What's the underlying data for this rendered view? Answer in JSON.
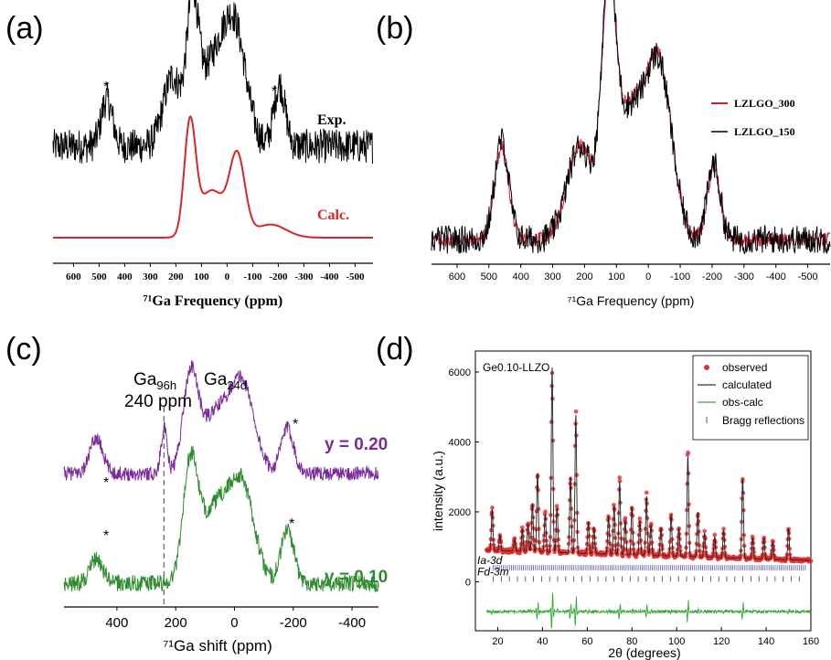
{
  "chart_data": [
    {
      "id": "a",
      "panel_label": "(a)",
      "type": "line",
      "xlabel": "⁷¹Ga Frequency (ppm)",
      "x_ticks": [
        600,
        500,
        400,
        300,
        200,
        100,
        0,
        -100,
        -200,
        -300,
        -400,
        -500
      ],
      "xlim": [
        680,
        -570
      ],
      "ylabel": "",
      "grid": false,
      "series": [
        {
          "name": "Exp.",
          "color": "#000000",
          "role": "noisy",
          "peaks": [
            [
              470,
              0.38,
              22
            ],
            [
              215,
              0.55,
              35
            ],
            [
              135,
              1.0,
              22
            ],
            [
              60,
              0.62,
              55
            ],
            [
              -30,
              0.88,
              45
            ],
            [
              -205,
              0.5,
              22
            ]
          ],
          "noise": 0.14
        },
        {
          "name": "Calc.",
          "color": "#d62728",
          "role": "smooth",
          "peaks": [
            [
              145,
              1.0,
              22
            ],
            [
              60,
              0.43,
              50
            ],
            [
              -40,
              0.72,
              30
            ],
            [
              -170,
              0.12,
              60
            ]
          ],
          "noise": 0
        }
      ],
      "annotations": [
        "*",
        "*"
      ]
    },
    {
      "id": "b",
      "panel_label": "(b)",
      "type": "line",
      "xlabel": "⁷¹Ga Frequency (ppm)",
      "x_ticks": [
        600,
        500,
        400,
        300,
        200,
        100,
        0,
        -100,
        -200,
        -300,
        -400,
        -500
      ],
      "xlim": [
        680,
        -570
      ],
      "ylabel": "",
      "grid": false,
      "legend": "top-right",
      "series": [
        {
          "name": "LZLGO_300",
          "color": "#c8203b",
          "peaks": [
            [
              460,
              0.45,
              22
            ],
            [
              215,
              0.45,
              40
            ],
            [
              125,
              1.0,
              22
            ],
            [
              60,
              0.62,
              50
            ],
            [
              -35,
              0.8,
              40
            ],
            [
              -205,
              0.35,
              20
            ]
          ],
          "noise": 0.035
        },
        {
          "name": "LZLGO_150",
          "color": "#000000",
          "peaks": [
            [
              460,
              0.48,
              22
            ],
            [
              215,
              0.45,
              40
            ],
            [
              125,
              1.04,
              22
            ],
            [
              60,
              0.6,
              50
            ],
            [
              -35,
              0.78,
              40
            ],
            [
              -205,
              0.37,
              20
            ]
          ],
          "noise": 0.07
        }
      ]
    },
    {
      "id": "c",
      "panel_label": "(c)",
      "type": "line",
      "xlabel": "⁷¹Ga shift (ppm)",
      "x_ticks": [
        400,
        200,
        0,
        -200,
        -400
      ],
      "xlim": [
        580,
        -490
      ],
      "ylabel": "",
      "grid": false,
      "series": [
        {
          "name": "y = 0.20",
          "color": "#7b2a9a",
          "peaks": [
            [
              470,
              0.35,
              22
            ],
            [
              240,
              0.45,
              10
            ],
            [
              150,
              0.9,
              25
            ],
            [
              60,
              0.6,
              55
            ],
            [
              -30,
              0.78,
              40
            ],
            [
              -180,
              0.45,
              22
            ]
          ],
          "noise": 0.07
        },
        {
          "name": "y = 0.10",
          "color": "#2e8b2e",
          "peaks": [
            [
              470,
              0.2,
              22
            ],
            [
              150,
              0.92,
              25
            ],
            [
              60,
              0.65,
              55
            ],
            [
              -30,
              0.7,
              40
            ],
            [
              -180,
              0.45,
              22
            ]
          ],
          "noise": 0.07
        }
      ],
      "annotations": [
        "*",
        "*",
        "*",
        "*"
      ],
      "site_labels": {
        "ga96h_main": "Ga",
        "ga96h_sub": "96h",
        "ga96h_shift": "240 ppm",
        "ga24d_main": "Ga",
        "ga24d_sub": "24d"
      },
      "marker_line_x": 240
    },
    {
      "id": "d",
      "panel_label": "(d)",
      "type": "line",
      "title": "Ge0.10-LLZO",
      "xlabel": "2θ (degrees)",
      "ylabel": "intensity (a.u.)",
      "xlim": [
        10,
        160
      ],
      "ylim": [
        -1400,
        6600
      ],
      "x_ticks": [
        20,
        40,
        60,
        80,
        100,
        120,
        140,
        160
      ],
      "y_ticks": [
        0,
        2000,
        4000,
        6000
      ],
      "legend": "top-right",
      "legend_entries": [
        {
          "name": "observed",
          "color": "#e53030",
          "symbol": "dot"
        },
        {
          "name": "calculated",
          "color": "#333333",
          "symbol": "line"
        },
        {
          "name": "obs-calc",
          "color": "#33aa33",
          "symbol": "line"
        },
        {
          "name": "Bragg reflections",
          "color": "#555555",
          "symbol": "tick"
        }
      ],
      "bragg_rows": [
        {
          "name": "Ia-3d",
          "offset": 400,
          "color": "#5a5aaa"
        },
        {
          "name": "Fd-3m",
          "offset": 80,
          "color": "#444444"
        }
      ],
      "diff_offset": -850,
      "background": 900,
      "peaks": [
        [
          17.5,
          1200
        ],
        [
          21,
          450
        ],
        [
          27.5,
          350
        ],
        [
          31,
          650
        ],
        [
          33.5,
          800
        ],
        [
          35.5,
          1400
        ],
        [
          37.8,
          2300
        ],
        [
          41.2,
          1100
        ],
        [
          44.3,
          5300
        ],
        [
          46.5,
          1300
        ],
        [
          52.5,
          2200
        ],
        [
          54.9,
          4000
        ],
        [
          60.5,
          900
        ],
        [
          63,
          750
        ],
        [
          69.5,
          1100
        ],
        [
          72,
          1400
        ],
        [
          74.5,
          2100
        ],
        [
          77,
          1000
        ],
        [
          80,
          1400
        ],
        [
          83.5,
          1000
        ],
        [
          86.5,
          1700
        ],
        [
          88.5,
          900
        ],
        [
          93,
          800
        ],
        [
          97.5,
          1200
        ],
        [
          101,
          800
        ],
        [
          105,
          2900
        ],
        [
          109.5,
          1300
        ],
        [
          112.5,
          700
        ],
        [
          117,
          600
        ],
        [
          121,
          800
        ],
        [
          129.5,
          2300
        ],
        [
          134,
          600
        ],
        [
          139,
          600
        ],
        [
          143,
          500
        ],
        [
          150,
          900
        ]
      ]
    }
  ]
}
